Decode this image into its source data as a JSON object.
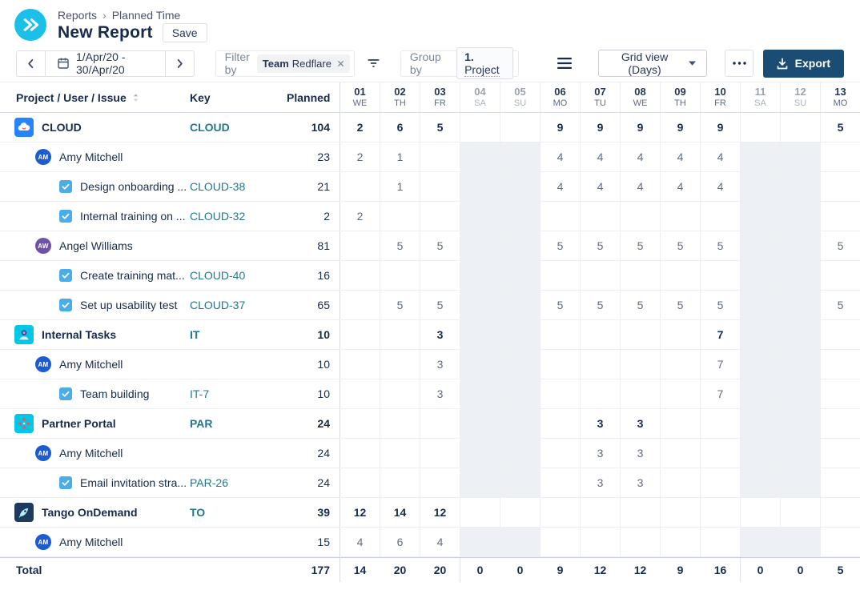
{
  "header": {
    "breadcrumb": [
      "Reports",
      "Planned Time"
    ],
    "breadcrumb_sep": "›",
    "title": "New Report",
    "save_label": "Save"
  },
  "toolbar": {
    "date_range": "1/Apr/20 - 30/Apr/20",
    "filter_label": "Filter by",
    "filter_chip": {
      "bold": "Team",
      "text": "Redflare",
      "remove": "×"
    },
    "group_label": "Group by",
    "group_value_prefix": "1.",
    "group_value": "Project",
    "view_dropdown": "Grid view (Days)",
    "export_label": "Export"
  },
  "icons": {
    "logo": "double-chevron-right-icon",
    "prev": "chevron-left-icon",
    "next": "chevron-right-icon",
    "calendar": "calendar-icon",
    "remove_chip": "close-icon",
    "filter": "filter-lines-icon",
    "group_menu": "menu-icon",
    "dropdown": "chevron-down-icon",
    "more": "ellipsis-icon",
    "export": "download-icon",
    "sort": "sort-icon"
  },
  "table": {
    "columns": {
      "name": "Project / User / Issue",
      "key": "Key",
      "planned": "Planned"
    },
    "days": [
      {
        "num": "01",
        "dow": "WE",
        "weekend": false
      },
      {
        "num": "02",
        "dow": "TH",
        "weekend": false
      },
      {
        "num": "03",
        "dow": "FR",
        "weekend": false
      },
      {
        "num": "04",
        "dow": "SA",
        "weekend": true
      },
      {
        "num": "05",
        "dow": "SU",
        "weekend": true
      },
      {
        "num": "06",
        "dow": "MO",
        "weekend": false
      },
      {
        "num": "07",
        "dow": "TU",
        "weekend": false
      },
      {
        "num": "08",
        "dow": "WE",
        "weekend": false
      },
      {
        "num": "09",
        "dow": "TH",
        "weekend": false
      },
      {
        "num": "10",
        "dow": "FR",
        "weekend": false
      },
      {
        "num": "11",
        "dow": "SA",
        "weekend": true
      },
      {
        "num": "12",
        "dow": "SU",
        "weekend": true
      },
      {
        "num": "13",
        "dow": "MO",
        "weekend": false
      }
    ],
    "rows": [
      {
        "type": "project",
        "icon": "cloud-project-icon",
        "name": "CLOUD",
        "key": "CLOUD",
        "planned": "104",
        "weekend_tint": false,
        "cells": [
          "2",
          "6",
          "5",
          "",
          "",
          "9",
          "9",
          "9",
          "9",
          "9",
          "",
          "",
          "5"
        ]
      },
      {
        "type": "user",
        "avatar": {
          "initials": "AM",
          "color": "#1d5bd0"
        },
        "name": "Amy Mitchell",
        "key": "",
        "planned": "23",
        "weekend_tint": true,
        "cells": [
          "2",
          "1",
          "",
          "",
          "",
          "4",
          "4",
          "4",
          "4",
          "4",
          "",
          "",
          ""
        ]
      },
      {
        "type": "issue",
        "icon": "task-checkbox-icon",
        "name": "Design onboarding ...",
        "key": "CLOUD-38",
        "planned": "21",
        "weekend_tint": true,
        "cells": [
          "",
          "1",
          "",
          "",
          "",
          "4",
          "4",
          "4",
          "4",
          "4",
          "",
          "",
          ""
        ]
      },
      {
        "type": "issue",
        "icon": "task-checkbox-icon",
        "name": "Internal training on ...",
        "key": "CLOUD-32",
        "planned": "2",
        "weekend_tint": true,
        "cells": [
          "2",
          "",
          "",
          "",
          "",
          "",
          "",
          "",
          "",
          "",
          "",
          "",
          ""
        ]
      },
      {
        "type": "user",
        "avatar": {
          "initials": "AW",
          "color": "#6E52A5"
        },
        "name": "Angel Williams",
        "key": "",
        "planned": "81",
        "weekend_tint": true,
        "cells": [
          "",
          "5",
          "5",
          "",
          "",
          "5",
          "5",
          "5",
          "5",
          "5",
          "",
          "",
          "5"
        ]
      },
      {
        "type": "issue",
        "icon": "task-checkbox-icon",
        "name": "Create training mat...",
        "key": "CLOUD-40",
        "planned": "16",
        "weekend_tint": true,
        "cells": [
          "",
          "",
          "",
          "",
          "",
          "",
          "",
          "",
          "",
          "",
          "",
          "",
          ""
        ]
      },
      {
        "type": "issue",
        "icon": "task-checkbox-icon",
        "name": "Set up usability test",
        "key": "CLOUD-37",
        "planned": "65",
        "weekend_tint": true,
        "cells": [
          "",
          "5",
          "5",
          "",
          "",
          "5",
          "5",
          "5",
          "5",
          "5",
          "",
          "",
          "5"
        ]
      },
      {
        "type": "project",
        "icon": "internal-tasks-project-icon",
        "name": "Internal Tasks",
        "key": "IT",
        "planned": "10",
        "weekend_tint": true,
        "cells": [
          "",
          "",
          "3",
          "",
          "",
          "",
          "",
          "",
          "",
          "7",
          "",
          "",
          ""
        ]
      },
      {
        "type": "user",
        "avatar": {
          "initials": "AM",
          "color": "#1d5bd0"
        },
        "name": "Amy Mitchell",
        "key": "",
        "planned": "10",
        "weekend_tint": true,
        "cells": [
          "",
          "",
          "3",
          "",
          "",
          "",
          "",
          "",
          "",
          "7",
          "",
          "",
          ""
        ]
      },
      {
        "type": "issue",
        "icon": "task-checkbox-icon",
        "name": "Team building",
        "key": "IT-7",
        "planned": "10",
        "weekend_tint": true,
        "cells": [
          "",
          "",
          "3",
          "",
          "",
          "",
          "",
          "",
          "",
          "7",
          "",
          "",
          ""
        ]
      },
      {
        "type": "project",
        "icon": "partner-portal-project-icon",
        "name": "Partner Portal",
        "key": "PAR",
        "planned": "24",
        "weekend_tint": true,
        "cells": [
          "",
          "",
          "",
          "",
          "",
          "",
          "3",
          "3",
          "",
          "",
          "",
          "",
          ""
        ]
      },
      {
        "type": "user",
        "avatar": {
          "initials": "AM",
          "color": "#1d5bd0"
        },
        "name": "Amy Mitchell",
        "key": "",
        "planned": "24",
        "weekend_tint": true,
        "cells": [
          "",
          "",
          "",
          "",
          "",
          "",
          "3",
          "3",
          "",
          "",
          "",
          "",
          ""
        ]
      },
      {
        "type": "issue",
        "icon": "task-checkbox-icon",
        "name": "Email invitation stra...",
        "key": "PAR-26",
        "planned": "24",
        "weekend_tint": true,
        "cells": [
          "",
          "",
          "",
          "",
          "",
          "",
          "3",
          "3",
          "",
          "",
          "",
          "",
          ""
        ]
      },
      {
        "type": "project",
        "icon": "tango-project-icon",
        "name": "Tango OnDemand",
        "key": "TO",
        "planned": "39",
        "weekend_tint": false,
        "cells": [
          "12",
          "14",
          "12",
          "",
          "",
          "",
          "",
          "",
          "",
          "",
          "",
          "",
          ""
        ]
      },
      {
        "type": "user",
        "avatar": {
          "initials": "AM",
          "color": "#1d5bd0"
        },
        "name": "Amy Mitchell",
        "key": "",
        "planned": "15",
        "weekend_tint": true,
        "cells": [
          "4",
          "6",
          "4",
          "",
          "",
          "",
          "",
          "",
          "",
          "",
          "",
          "",
          ""
        ]
      }
    ],
    "total": {
      "label": "Total",
      "planned": "177",
      "cells": [
        "14",
        "20",
        "20",
        "0",
        "0",
        "9",
        "12",
        "12",
        "9",
        "16",
        "0",
        "0",
        "5"
      ]
    }
  },
  "colors": {
    "accent_cyan": "#1BC0E8",
    "export_button": "#1B4D74",
    "key_link": "#20788F",
    "weekend_fill": "#EDF1F6",
    "project_cloud": "#2684FF",
    "project_cyan": "#00C7E5",
    "project_navy": "#1D3A5F",
    "avatar_blue": "#1d5bd0",
    "avatar_purple": "#6E52A5",
    "task_icon_blue": "#4BADE8"
  }
}
